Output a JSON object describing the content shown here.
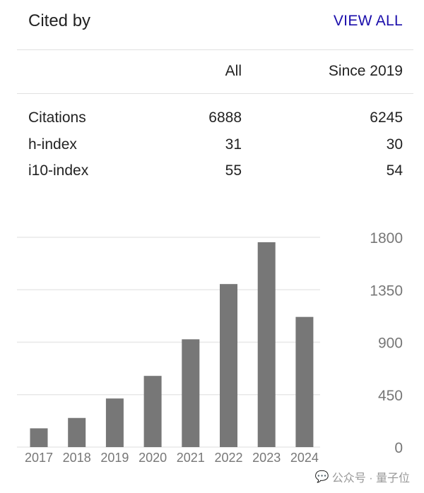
{
  "header": {
    "title": "Cited by",
    "view_all": "VIEW ALL"
  },
  "table": {
    "columns": [
      "",
      "All",
      "Since 2019"
    ],
    "rows": [
      {
        "label": "Citations",
        "all": "6888",
        "since": "6245"
      },
      {
        "label": "h-index",
        "all": "31",
        "since": "30"
      },
      {
        "label": "i10-index",
        "all": "55",
        "since": "54"
      }
    ]
  },
  "chart_data": {
    "type": "bar",
    "categories": [
      "2017",
      "2018",
      "2019",
      "2020",
      "2021",
      "2022",
      "2023",
      "2024"
    ],
    "values": [
      161,
      250,
      417,
      611,
      925,
      1399,
      1758,
      1117
    ],
    "ylim": [
      0,
      1800
    ],
    "yticks": [
      "0",
      "450",
      "900",
      "1350",
      "1800"
    ],
    "grid": true,
    "y_axis_side": "right",
    "bar_color": "#777777"
  },
  "watermark": {
    "text": "公众号 · 量子位"
  }
}
